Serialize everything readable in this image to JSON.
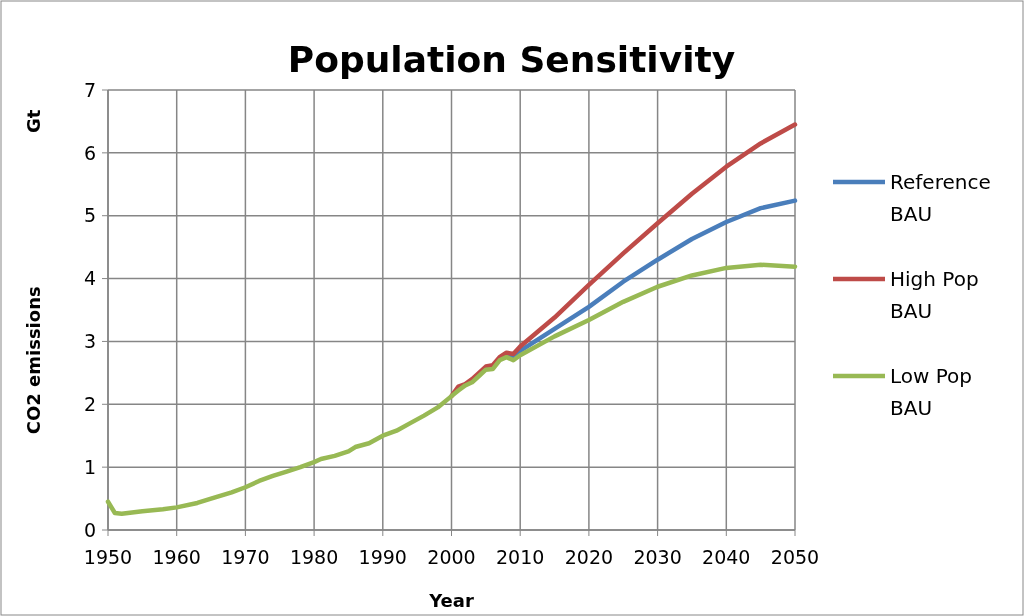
{
  "chart_data": {
    "type": "line",
    "title": "Population Sensitivity",
    "xlabel": "Year",
    "ylabel": "CO2 emissions",
    "annotations": [
      "Gt"
    ],
    "x": [
      1950,
      1951,
      1952,
      1955,
      1958,
      1960,
      1963,
      1965,
      1968,
      1970,
      1972,
      1974,
      1976,
      1978,
      1980,
      1981,
      1983,
      1985,
      1986,
      1988,
      1990,
      1992,
      1994,
      1996,
      1998,
      2000,
      2001,
      2002,
      2003,
      2004,
      2005,
      2006,
      2007,
      2008,
      2009,
      2010,
      2015,
      2020,
      2025,
      2030,
      2035,
      2040,
      2045,
      2050
    ],
    "series": [
      {
        "name": "Reference BAU",
        "color": "#4a7ebb",
        "x": [
          2008,
          2009,
          2010,
          2015,
          2020,
          2025,
          2030,
          2035,
          2040,
          2045,
          2050
        ],
        "values": [
          2.79,
          2.77,
          2.85,
          3.2,
          3.55,
          3.95,
          4.3,
          4.63,
          4.9,
          5.12,
          5.24
        ]
      },
      {
        "name": "High Pop BAU",
        "color": "#be4b48",
        "x": [
          2000,
          2001,
          2002,
          2003,
          2004,
          2005,
          2006,
          2007,
          2008,
          2009,
          2010,
          2015,
          2020,
          2025,
          2030,
          2035,
          2040,
          2045,
          2050
        ],
        "values": [
          2.13,
          2.28,
          2.32,
          2.4,
          2.5,
          2.6,
          2.62,
          2.75,
          2.82,
          2.8,
          2.92,
          3.38,
          3.9,
          4.4,
          4.88,
          5.35,
          5.78,
          6.15,
          6.45
        ]
      },
      {
        "name": "Low Pop BAU",
        "color": "#98b954",
        "values": [
          0.45,
          0.27,
          0.26,
          0.3,
          0.33,
          0.36,
          0.43,
          0.5,
          0.6,
          0.68,
          0.78,
          0.86,
          0.93,
          1.0,
          1.08,
          1.13,
          1.18,
          1.25,
          1.32,
          1.38,
          1.5,
          1.58,
          1.7,
          1.82,
          1.95,
          2.13,
          2.22,
          2.3,
          2.35,
          2.45,
          2.55,
          2.56,
          2.7,
          2.75,
          2.7,
          2.78,
          3.08,
          3.34,
          3.63,
          3.87,
          4.05,
          4.17,
          4.22,
          4.19
        ]
      }
    ],
    "xlim": [
      1950,
      2050
    ],
    "xticks": [
      1950,
      1960,
      1970,
      1980,
      1990,
      2000,
      2010,
      2020,
      2030,
      2040,
      2050
    ],
    "ylim": [
      0,
      7
    ],
    "yticks": [
      0,
      1,
      2,
      3,
      4,
      5,
      6,
      7
    ],
    "grid": true,
    "legend": "right",
    "marker": "none",
    "line_style": "solid"
  }
}
